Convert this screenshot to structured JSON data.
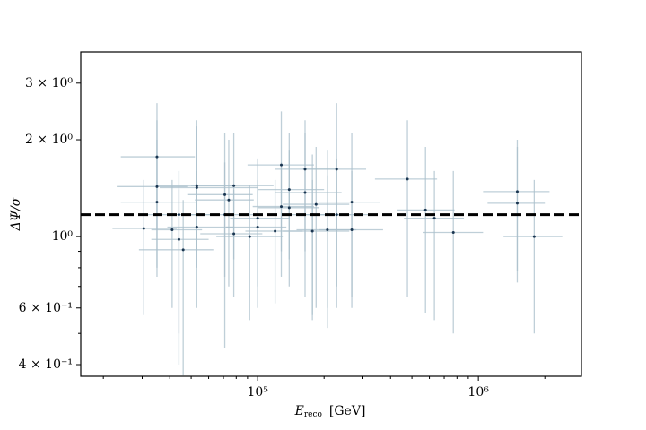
{
  "chart_data": {
    "type": "scatter",
    "xlabel": {
      "main": "E",
      "sub": "reco",
      "unit": "[GeV]"
    },
    "ylabel": "ΔΨ/σ",
    "xscale": "log",
    "yscale": "log",
    "xlim": [
      15800,
      2930000
    ],
    "ylim": [
      0.368,
      3.75
    ],
    "xticks": [
      {
        "value": 100000,
        "label": "10⁵"
      },
      {
        "value": 1000000,
        "label": "10⁶"
      }
    ],
    "xminor": [
      20000,
      30000,
      40000,
      50000,
      60000,
      70000,
      80000,
      90000,
      200000,
      300000,
      400000,
      500000,
      600000,
      700000,
      800000,
      900000,
      2000000
    ],
    "yticks": [
      {
        "value": 0.4,
        "label": "4 × 10⁻¹"
      },
      {
        "value": 0.6,
        "label": "6 × 10⁻¹"
      },
      {
        "value": 1,
        "label": "10⁰"
      },
      {
        "value": 2,
        "label": "2 × 10⁰"
      },
      {
        "value": 3,
        "label": "3 × 10⁰"
      }
    ],
    "yminor": [
      0.5,
      0.7,
      0.8,
      0.9
    ],
    "hline": 1.17,
    "color": "#1a3550",
    "errorbar_color": "#a9bfcb",
    "x": [
      30500,
      35000,
      35000,
      35000,
      44000,
      44000,
      46000,
      41000,
      53000,
      53000,
      53000,
      71000,
      71000,
      74000,
      78000,
      78000,
      92000,
      100000,
      100000,
      128000,
      128000,
      139000,
      139000,
      120000,
      164000,
      177000,
      177000,
      184000,
      164000,
      207000,
      207000,
      228000,
      228000,
      267000,
      267000,
      477000,
      576000,
      632000,
      770000,
      1500000,
      1500000,
      1790000
    ],
    "values": [
      1.06,
      1.77,
      1.43,
      1.28,
      1.17,
      0.98,
      0.91,
      1.05,
      1.44,
      1.07,
      1.42,
      1.35,
      1.17,
      1.3,
      1.44,
      1.02,
      1.0,
      1.07,
      1.14,
      1.67,
      1.24,
      1.4,
      1.23,
      1.04,
      1.37,
      1.17,
      1.04,
      1.26,
      1.62,
      1.17,
      1.05,
      1.62,
      1.17,
      1.05,
      1.28,
      1.51,
      1.21,
      1.14,
      1.03,
      1.38,
      1.27,
      1.0
    ],
    "x_low": [
      22000,
      24000,
      23000,
      24000,
      30000,
      33000,
      29000,
      33000,
      35000,
      39000,
      36000,
      48000,
      50000,
      52000,
      50000,
      55000,
      65000,
      72000,
      75000,
      90000,
      95000,
      100000,
      100000,
      88000,
      120000,
      130000,
      130000,
      130000,
      120000,
      150000,
      150000,
      160000,
      170000,
      190000,
      190000,
      340000,
      430000,
      460000,
      560000,
      1050000,
      1100000,
      1300000
    ],
    "x_high": [
      43000,
      52000,
      48000,
      53000,
      65000,
      60000,
      63000,
      56000,
      80000,
      78000,
      100000,
      95000,
      100000,
      96000,
      118000,
      105000,
      130000,
      135000,
      140000,
      180000,
      180000,
      200000,
      190000,
      160000,
      240000,
      250000,
      260000,
      260000,
      230000,
      290000,
      280000,
      310000,
      320000,
      370000,
      360000,
      650000,
      780000,
      860000,
      1050000,
      2100000,
      2000000,
      2400000
    ],
    "y_low": [
      0.57,
      1.05,
      0.75,
      0.8,
      0.5,
      0.4,
      0.37,
      0.6,
      0.9,
      0.6,
      0.8,
      0.75,
      0.45,
      0.7,
      0.85,
      0.65,
      0.55,
      0.6,
      0.7,
      0.9,
      0.75,
      0.85,
      0.7,
      0.62,
      0.65,
      0.57,
      0.55,
      0.6,
      0.9,
      0.52,
      0.6,
      0.7,
      0.6,
      0.6,
      0.65,
      0.65,
      0.58,
      0.55,
      0.5,
      0.78,
      0.72,
      0.5
    ],
    "y_high": [
      1.5,
      2.6,
      2.3,
      2.0,
      1.6,
      1.4,
      1.3,
      1.5,
      2.2,
      1.6,
      2.3,
      2.1,
      1.7,
      2.0,
      2.1,
      1.4,
      1.45,
      1.5,
      1.75,
      2.45,
      1.7,
      2.1,
      1.85,
      1.5,
      2.1,
      1.8,
      1.5,
      1.9,
      2.3,
      1.85,
      1.55,
      2.6,
      1.75,
      1.6,
      2.1,
      2.3,
      1.9,
      1.6,
      1.6,
      2.0,
      1.9,
      1.5
    ]
  }
}
